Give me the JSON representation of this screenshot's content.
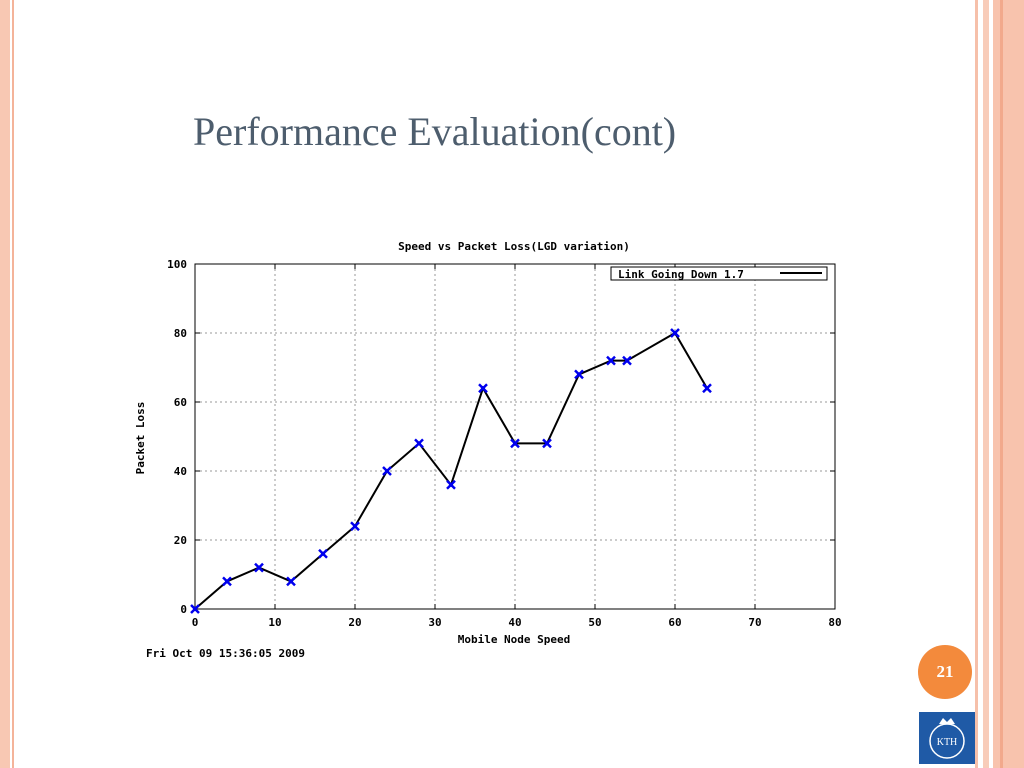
{
  "slide": {
    "title": "Performance Evaluation(cont)",
    "page_number": "21",
    "logo_text": "KTH"
  },
  "chart_data": {
    "type": "line",
    "title": "Speed vs Packet Loss(LGD variation)",
    "xlabel": "Mobile Node Speed",
    "ylabel": "Packet Loss",
    "xlim": [
      0,
      80
    ],
    "ylim": [
      0,
      100
    ],
    "x_ticks": [
      0,
      10,
      20,
      30,
      40,
      50,
      60,
      70,
      80
    ],
    "y_ticks": [
      0,
      20,
      40,
      60,
      80,
      100
    ],
    "grid": true,
    "legend_position": "top-right",
    "timestamp": "Fri Oct 09 15:36:05 2009",
    "series": [
      {
        "name": "Link Going Down 1.7",
        "line_color": "#000000",
        "marker_color": "#0000ee",
        "x": [
          0,
          4,
          8,
          12,
          16,
          20,
          24,
          28,
          32,
          36,
          40,
          44,
          48,
          52,
          54,
          60,
          64
        ],
        "y": [
          0,
          8,
          12,
          8,
          16,
          24,
          40,
          48,
          36,
          64,
          48,
          48,
          68,
          72,
          72,
          80,
          64
        ]
      }
    ]
  }
}
